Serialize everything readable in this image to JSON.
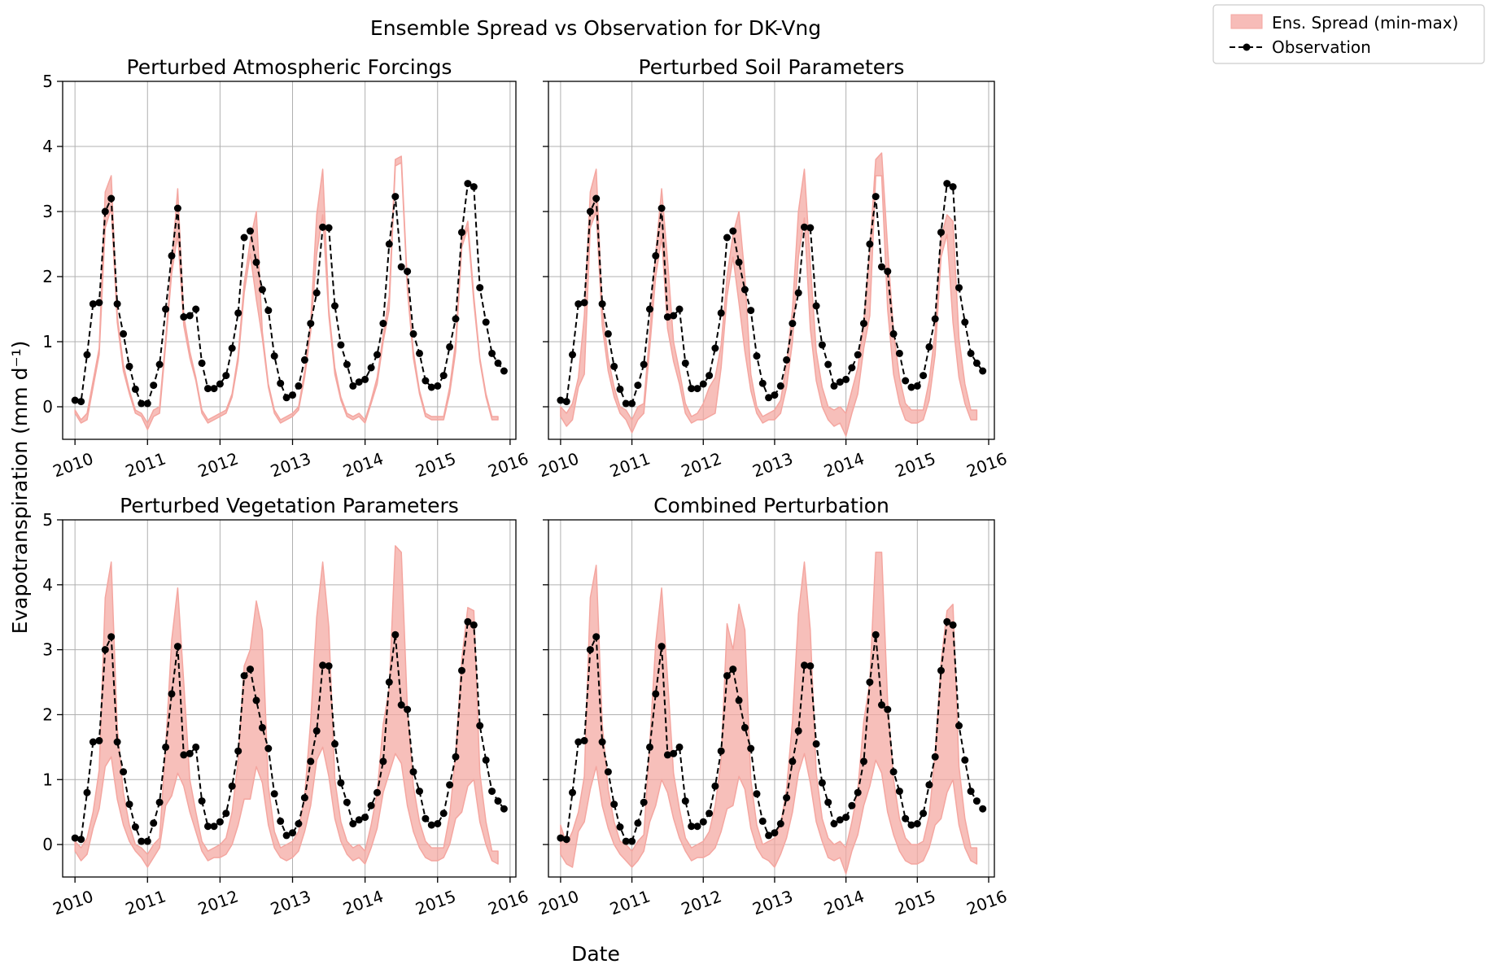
{
  "figure": {
    "title": "Ensemble Spread vs Observation for DK-Vng",
    "xlabel": "Date",
    "ylabel": "Evapotranspiration (mm d⁻¹)"
  },
  "legend": {
    "placement": "top-right",
    "spread_label": "Ens. Spread (min-max)",
    "obs_label": "Observation",
    "spread_color": "#f4a6a0",
    "obs_color": "#000000"
  },
  "chart_data": [
    {
      "type": "area",
      "title": "Perturbed Atmospheric Forcings",
      "xlim": [
        2009.83,
        2016.08
      ],
      "ylim": [
        -0.5,
        5
      ],
      "grid": true,
      "xticks": [
        2010,
        2011,
        2012,
        2013,
        2014,
        2015,
        2016
      ],
      "yticks": [
        0,
        1,
        2,
        3,
        4,
        5
      ],
      "series": [
        {
          "role": "spread-min",
          "values": [
            -0.1,
            -0.25,
            -0.2,
            0.3,
            0.8,
            2.75,
            3.05,
            1.3,
            0.55,
            0.2,
            -0.1,
            -0.15,
            -0.35,
            -0.15,
            -0.1,
            0.95,
            2.05,
            2.65,
            1.25,
            0.75,
            0.4,
            -0.1,
            -0.25,
            -0.2,
            -0.15,
            -0.1,
            0.15,
            0.7,
            1.75,
            2.35,
            1.65,
            1.05,
            0.3,
            -0.1,
            -0.25,
            -0.2,
            -0.15,
            -0.05,
            0.45,
            1.15,
            2.35,
            2.95,
            1.4,
            0.5,
            0.1,
            -0.15,
            -0.2,
            -0.15,
            -0.25,
            0.05,
            0.35,
            1.0,
            1.5,
            3.7,
            3.75,
            1.8,
            0.75,
            0.2,
            -0.15,
            -0.2,
            -0.2,
            -0.2,
            0.2,
            0.85,
            2.45,
            2.75,
            1.6,
            0.7,
            0.15,
            -0.2,
            -0.2
          ]
        },
        {
          "role": "spread-max",
          "values": [
            -0.05,
            -0.2,
            -0.1,
            0.4,
            0.9,
            3.3,
            3.55,
            1.4,
            0.65,
            0.25,
            -0.05,
            -0.1,
            -0.25,
            -0.05,
            0.0,
            1.05,
            2.2,
            3.35,
            1.4,
            0.85,
            0.45,
            -0.05,
            -0.2,
            -0.15,
            -0.1,
            -0.05,
            0.2,
            0.8,
            1.9,
            2.55,
            3.0,
            1.15,
            0.35,
            -0.05,
            -0.2,
            -0.15,
            -0.1,
            0.0,
            0.55,
            1.3,
            2.95,
            3.65,
            1.5,
            0.6,
            0.15,
            -0.1,
            -0.15,
            -0.1,
            -0.2,
            0.1,
            0.45,
            1.1,
            1.7,
            3.8,
            3.85,
            1.9,
            0.85,
            0.25,
            -0.1,
            -0.15,
            -0.15,
            -0.15,
            0.3,
            1.0,
            2.55,
            2.85,
            1.7,
            0.75,
            0.2,
            -0.15,
            -0.15
          ]
        }
      ]
    },
    {
      "type": "area",
      "title": "Perturbed Soil Parameters",
      "xlim": [
        2009.83,
        2016.08
      ],
      "ylim": [
        -0.5,
        5
      ],
      "grid": true,
      "xticks": [
        2010,
        2011,
        2012,
        2013,
        2014,
        2015,
        2016
      ],
      "yticks": [
        0,
        1,
        2,
        3,
        4,
        5
      ],
      "series": [
        {
          "role": "spread-min",
          "values": [
            -0.15,
            -0.3,
            -0.2,
            0.3,
            0.5,
            2.75,
            3.0,
            1.25,
            0.55,
            0.15,
            -0.1,
            -0.2,
            -0.4,
            -0.2,
            -0.1,
            0.9,
            2.0,
            2.6,
            1.2,
            0.7,
            0.35,
            -0.1,
            -0.25,
            -0.2,
            -0.2,
            -0.15,
            -0.1,
            0.6,
            1.7,
            2.3,
            1.6,
            0.85,
            0.25,
            -0.1,
            -0.25,
            -0.2,
            -0.2,
            -0.1,
            0.3,
            1.0,
            2.3,
            2.9,
            1.2,
            0.4,
            0.0,
            -0.2,
            -0.3,
            -0.25,
            -0.45,
            -0.1,
            0.2,
            0.9,
            1.4,
            3.55,
            3.55,
            1.5,
            0.5,
            0.05,
            -0.2,
            -0.25,
            -0.25,
            -0.2,
            0.1,
            0.8,
            2.3,
            2.65,
            1.3,
            0.45,
            0.05,
            -0.2,
            -0.2
          ]
        },
        {
          "role": "spread-max",
          "values": [
            0.0,
            -0.1,
            0.05,
            0.45,
            1.4,
            3.3,
            3.65,
            1.5,
            0.75,
            0.3,
            0.0,
            -0.05,
            -0.2,
            0.0,
            0.05,
            1.15,
            2.35,
            3.35,
            2.25,
            1.0,
            0.55,
            0.05,
            -0.15,
            -0.1,
            0.05,
            0.3,
            0.45,
            0.95,
            2.0,
            2.65,
            3.0,
            2.0,
            0.5,
            0.0,
            -0.15,
            -0.1,
            -0.05,
            0.1,
            0.65,
            1.5,
            3.0,
            3.65,
            2.2,
            0.85,
            0.3,
            0.0,
            -0.05,
            0.0,
            -0.1,
            0.25,
            0.6,
            1.3,
            2.4,
            3.8,
            3.9,
            2.45,
            1.15,
            0.45,
            0.05,
            -0.05,
            -0.05,
            -0.05,
            0.4,
            1.15,
            2.6,
            2.95,
            2.85,
            1.05,
            0.35,
            -0.05,
            -0.05
          ]
        }
      ]
    },
    {
      "type": "area",
      "title": "Perturbed Vegetation Parameters",
      "xlim": [
        2009.83,
        2016.08
      ],
      "ylim": [
        -0.5,
        5
      ],
      "grid": true,
      "xticks": [
        2010,
        2011,
        2012,
        2013,
        2014,
        2015,
        2016
      ],
      "yticks": [
        0,
        1,
        2,
        3,
        4,
        5
      ],
      "series": [
        {
          "role": "spread-min",
          "values": [
            -0.1,
            -0.25,
            -0.15,
            0.25,
            0.55,
            1.2,
            1.35,
            0.7,
            0.3,
            0.05,
            -0.1,
            -0.2,
            -0.35,
            -0.2,
            -0.05,
            0.6,
            0.75,
            1.1,
            0.9,
            0.5,
            0.2,
            -0.1,
            -0.25,
            -0.2,
            -0.2,
            -0.15,
            0.0,
            0.3,
            0.7,
            0.7,
            1.2,
            0.95,
            0.3,
            -0.05,
            -0.2,
            -0.25,
            -0.2,
            -0.1,
            0.2,
            0.6,
            1.3,
            1.5,
            1.05,
            0.4,
            0.05,
            -0.15,
            -0.25,
            -0.2,
            -0.3,
            -0.05,
            0.25,
            0.8,
            1.1,
            1.4,
            1.25,
            0.6,
            0.2,
            -0.05,
            -0.2,
            -0.25,
            -0.25,
            -0.2,
            0.0,
            0.4,
            0.5,
            0.9,
            1.0,
            0.35,
            0.0,
            -0.25,
            -0.3
          ]
        },
        {
          "role": "spread-max",
          "values": [
            0.05,
            -0.05,
            0.1,
            0.5,
            1.15,
            3.8,
            4.35,
            1.8,
            0.8,
            0.3,
            0.0,
            -0.05,
            -0.15,
            0.0,
            0.1,
            1.5,
            3.15,
            3.95,
            2.5,
            1.0,
            0.5,
            0.05,
            -0.1,
            -0.05,
            0.0,
            0.1,
            0.5,
            1.3,
            2.75,
            3.0,
            3.75,
            3.3,
            0.9,
            0.2,
            -0.05,
            0.0,
            0.05,
            0.2,
            0.75,
            1.9,
            3.5,
            4.35,
            3.35,
            1.0,
            0.35,
            0.05,
            -0.05,
            0.0,
            -0.1,
            0.3,
            0.8,
            1.85,
            2.4,
            4.6,
            4.5,
            2.1,
            0.9,
            0.35,
            0.05,
            -0.05,
            -0.05,
            -0.05,
            0.45,
            1.4,
            2.85,
            3.65,
            3.6,
            1.1,
            0.35,
            -0.1,
            -0.1
          ]
        }
      ]
    },
    {
      "type": "area",
      "title": "Combined Perturbation",
      "xlim": [
        2009.83,
        2016.08
      ],
      "ylim": [
        -0.5,
        5
      ],
      "grid": true,
      "xticks": [
        2010,
        2011,
        2012,
        2013,
        2014,
        2015,
        2016
      ],
      "yticks": [
        0,
        1,
        2,
        3,
        4,
        5
      ],
      "series": [
        {
          "role": "spread-min",
          "values": [
            -0.15,
            -0.3,
            -0.35,
            0.2,
            0.35,
            0.85,
            1.2,
            0.6,
            0.25,
            0.0,
            -0.15,
            -0.25,
            -0.35,
            -0.25,
            -0.1,
            0.35,
            0.6,
            1.0,
            0.8,
            0.4,
            0.1,
            -0.1,
            -0.25,
            -0.2,
            -0.2,
            -0.15,
            -0.05,
            0.2,
            0.55,
            0.6,
            1.05,
            0.85,
            0.25,
            -0.05,
            -0.2,
            -0.25,
            -0.35,
            -0.15,
            0.1,
            0.5,
            1.1,
            1.4,
            0.95,
            0.35,
            0.05,
            -0.2,
            -0.25,
            -0.2,
            -0.45,
            -0.1,
            0.15,
            0.6,
            0.9,
            1.3,
            1.1,
            0.5,
            0.15,
            -0.1,
            -0.25,
            -0.3,
            -0.3,
            -0.25,
            -0.05,
            0.3,
            0.4,
            0.8,
            1.0,
            0.3,
            -0.05,
            -0.25,
            -0.3
          ]
        },
        {
          "role": "spread-max",
          "values": [
            0.3,
            0.0,
            0.2,
            0.5,
            1.05,
            3.8,
            4.3,
            1.85,
            0.85,
            0.35,
            0.05,
            0.0,
            -0.1,
            0.05,
            0.15,
            1.55,
            3.1,
            3.95,
            2.55,
            1.1,
            0.55,
            0.1,
            -0.05,
            0.0,
            0.05,
            0.2,
            0.6,
            1.3,
            3.4,
            3.0,
            3.7,
            3.3,
            1.0,
            0.3,
            0.0,
            0.05,
            0.1,
            0.3,
            0.85,
            1.9,
            3.55,
            4.35,
            3.3,
            1.1,
            0.4,
            0.1,
            0.0,
            0.05,
            -0.05,
            0.35,
            0.85,
            1.9,
            2.5,
            4.5,
            4.5,
            2.2,
            1.0,
            0.4,
            0.1,
            0.0,
            0.0,
            0.05,
            0.45,
            1.4,
            2.8,
            3.6,
            3.7,
            1.2,
            0.4,
            -0.05,
            -0.05
          ]
        }
      ]
    }
  ],
  "observation": {
    "x_start": "2010-01",
    "x_step": "1 month",
    "values": [
      0.1,
      0.08,
      0.8,
      1.58,
      1.6,
      3.0,
      3.2,
      1.58,
      1.12,
      0.62,
      0.27,
      0.05,
      0.05,
      0.33,
      0.65,
      1.5,
      2.32,
      3.05,
      1.38,
      1.4,
      1.5,
      0.67,
      0.28,
      0.28,
      0.35,
      0.48,
      0.9,
      1.44,
      2.6,
      2.7,
      2.22,
      1.8,
      1.48,
      0.78,
      0.36,
      0.14,
      0.18,
      0.32,
      0.72,
      1.28,
      1.75,
      2.76,
      2.75,
      1.55,
      0.95,
      0.65,
      0.32,
      0.38,
      0.42,
      0.6,
      0.8,
      1.28,
      2.5,
      3.23,
      2.15,
      2.08,
      1.12,
      0.82,
      0.4,
      0.3,
      0.32,
      0.48,
      0.92,
      1.35,
      2.68,
      3.43,
      3.38,
      1.83,
      1.3,
      0.82,
      0.67,
      0.55
    ]
  }
}
